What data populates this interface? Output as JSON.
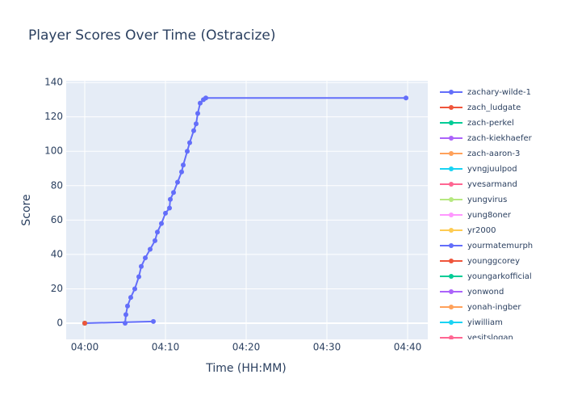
{
  "chart_data": {
    "type": "line",
    "title": "Player Scores Over Time (Ostracize)",
    "x_label": "Time (HH:MM)",
    "y_label": "Score",
    "xlim": [
      "03:57:42",
      "04:42:30"
    ],
    "xticks": [
      "04:00",
      "04:10",
      "04:20",
      "04:30",
      "04:40"
    ],
    "ylim": [
      -9.4,
      141
    ],
    "yticks": [
      0,
      20,
      40,
      60,
      80,
      100,
      120,
      140
    ],
    "grid": true,
    "series": [
      {
        "name": "zachary-wilde-1",
        "color": "#636efa",
        "x": [
          "04:05:00",
          "04:05:06",
          "04:05:18",
          "04:05:42",
          "04:06:12",
          "04:06:42",
          "04:07:00",
          "04:07:30",
          "04:08:06",
          "04:08:42",
          "04:09:00",
          "04:09:30",
          "04:10:00",
          "04:10:30",
          "04:10:36",
          "04:11:00",
          "04:11:30",
          "04:12:00",
          "04:12:12",
          "04:12:42",
          "04:13:00",
          "04:13:30",
          "04:13:48",
          "04:14:00",
          "04:14:18",
          "04:14:42",
          "04:15:00",
          "04:39:48"
        ],
        "values": [
          0,
          5,
          10,
          15,
          20,
          27,
          33,
          38,
          43,
          48,
          53,
          58,
          64,
          67,
          72,
          76,
          82,
          88,
          92,
          100,
          105,
          112,
          116,
          122,
          128,
          130,
          131,
          131
        ]
      },
      {
        "name": "zach_ludgate",
        "color": "#EF553B",
        "x": [
          "04:00:00"
        ],
        "values": [
          0
        ]
      },
      {
        "name": "zach-perkel",
        "color": "#00cc96",
        "x": [
          "04:00:00"
        ],
        "values": [
          0
        ]
      },
      {
        "name": "zach-kiekhaefer",
        "color": "#ab63fa",
        "x": [
          "04:00:00"
        ],
        "values": [
          0
        ]
      },
      {
        "name": "zach-aaron-3",
        "color": "#FFA15A",
        "x": [
          "04:00:00"
        ],
        "values": [
          0
        ]
      },
      {
        "name": "yvngjuulpod",
        "color": "#19d3f3",
        "x": [
          "04:00:00"
        ],
        "values": [
          0
        ]
      },
      {
        "name": "yvesarmand",
        "color": "#FF6692",
        "x": [
          "04:00:00"
        ],
        "values": [
          0
        ]
      },
      {
        "name": "yungvirus",
        "color": "#B6E880",
        "x": [
          "04:00:00"
        ],
        "values": [
          0
        ]
      },
      {
        "name": "yung8oner",
        "color": "#FF97FF",
        "x": [
          "04:00:00"
        ],
        "values": [
          0
        ]
      },
      {
        "name": "yr2000",
        "color": "#FECB52",
        "x": [
          "04:00:00"
        ],
        "values": [
          0
        ]
      },
      {
        "name": "yourmatemurph",
        "color": "#636efa",
        "x": [
          "04:00:00",
          "04:08:30"
        ],
        "values": [
          0,
          1
        ]
      },
      {
        "name": "younggcorey",
        "color": "#EF553B",
        "x": [
          "04:00:00"
        ],
        "values": [
          0
        ]
      },
      {
        "name": "youngarkofficial",
        "color": "#00cc96",
        "x": [
          "04:00:00"
        ],
        "values": [
          0
        ]
      },
      {
        "name": "yonwond",
        "color": "#ab63fa",
        "x": [
          "04:00:00"
        ],
        "values": [
          0
        ]
      },
      {
        "name": "yonah-ingber",
        "color": "#FFA15A",
        "x": [
          "04:00:00"
        ],
        "values": [
          0
        ]
      },
      {
        "name": "yiwilliam",
        "color": "#19d3f3",
        "x": [
          "04:00:00"
        ],
        "values": [
          0
        ]
      },
      {
        "name": "yesitslogan",
        "color": "#FF6692",
        "x": [
          "04:00:00"
        ],
        "values": [
          0
        ]
      }
    ]
  }
}
